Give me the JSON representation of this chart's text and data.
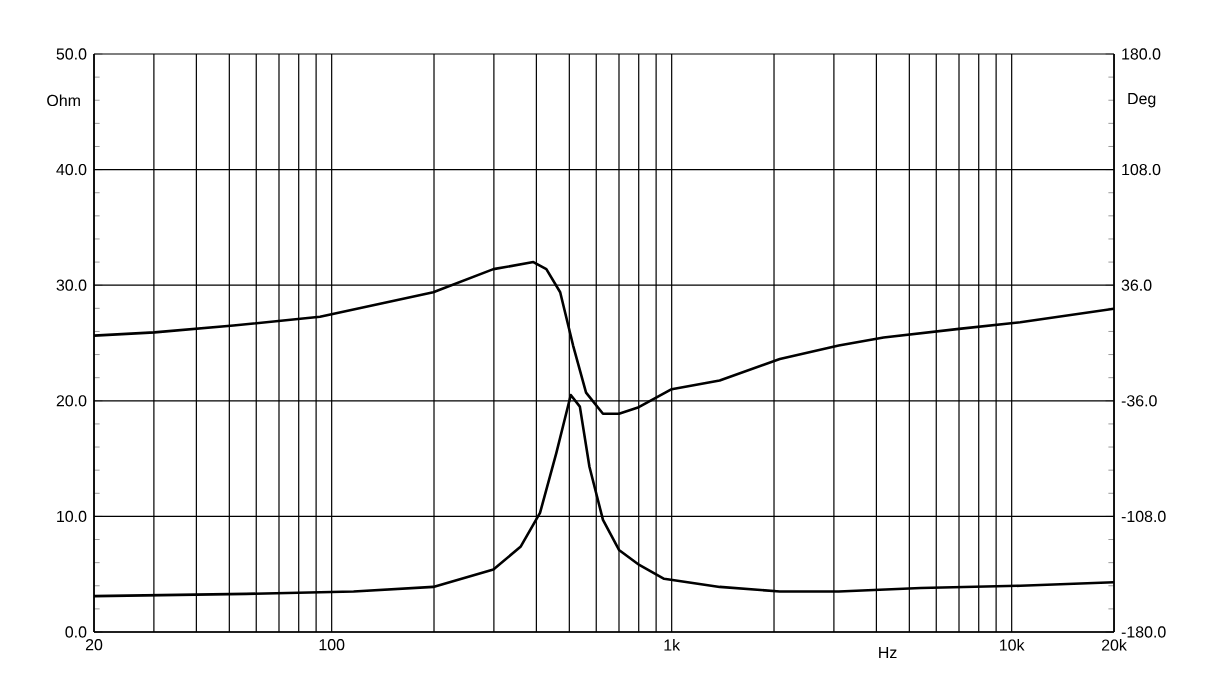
{
  "chart_data": {
    "type": "line",
    "xlabel": "Hz",
    "ylabel": "Ohm",
    "y2label": "Deg",
    "log": "x",
    "grid": true,
    "line_style": "solid",
    "x": [
      20,
      30.1,
      51.4,
      92.4,
      199,
      299,
      392,
      428,
      470,
      513,
      560,
      628,
      700,
      800,
      1000,
      1384,
      2080,
      3100,
      4200,
      7000,
      10600,
      20000
    ],
    "xlim": [
      20,
      20000
    ],
    "xticks": [
      20,
      {
        "value": 30,
        "label": null
      },
      {
        "value": 40,
        "label": null
      },
      {
        "value": 50,
        "label": null
      },
      {
        "value": 60,
        "label": null
      },
      {
        "value": 70,
        "label": null
      },
      {
        "value": 80,
        "label": null
      },
      {
        "value": 90,
        "label": null
      },
      100,
      {
        "value": 200,
        "label": null
      },
      {
        "value": 300,
        "label": null
      },
      {
        "value": 400,
        "label": null
      },
      {
        "value": 500,
        "label": null
      },
      {
        "value": 600,
        "label": null
      },
      {
        "value": 700,
        "label": null
      },
      {
        "value": 800,
        "label": null
      },
      {
        "value": 900,
        "label": null
      },
      {
        "value": 1000,
        "label": "1k"
      },
      {
        "value": 2000,
        "label": null
      },
      {
        "value": 3000,
        "label": null
      },
      {
        "value": 4000,
        "label": null
      },
      {
        "value": 5000,
        "label": null
      },
      {
        "value": 6000,
        "label": null
      },
      {
        "value": 7000,
        "label": null
      },
      {
        "value": 8000,
        "label": null
      },
      {
        "value": 9000,
        "label": null
      },
      {
        "value": 10000,
        "label": "10k"
      },
      {
        "value": 20000,
        "label": "20k"
      }
    ],
    "ylim": [
      0,
      50
    ],
    "yticks": [
      {
        "value": 0,
        "label": "0.0"
      },
      {
        "value": 10,
        "label": "10.0"
      },
      {
        "value": 20,
        "label": "20.0"
      },
      {
        "value": 30,
        "label": "30.0"
      },
      {
        "value": 40,
        "label": "40.0"
      },
      {
        "value": 50,
        "label": "50.0"
      }
    ],
    "y2lim": [
      -180,
      180
    ],
    "y2ticks": [
      {
        "value": -180,
        "label": "-180.0"
      },
      {
        "value": -108,
        "label": "-108.0"
      },
      {
        "value": -36,
        "label": "-36.0"
      },
      {
        "value": 36,
        "label": "36.0"
      },
      {
        "value": 108,
        "label": "108.0"
      },
      {
        "value": 180,
        "label": "180.0"
      }
    ],
    "series": [
      {
        "color": "#000000",
        "x": [
          20,
          56,
          116,
          199,
          299,
          360,
          410,
          458,
          505,
          537,
          573,
          628,
          700,
          803,
          950,
          1384,
          2080,
          3100,
          5400,
          10600,
          20000
        ],
        "values": [
          3.1,
          3.3,
          3.5,
          3.9,
          5.4,
          7.4,
          10.3,
          15.5,
          20.5,
          19.5,
          14.3,
          9.7,
          7.1,
          5.8,
          4.6,
          3.9,
          3.5,
          3.5,
          3.8,
          4.0,
          4.3
        ]
      },
      {
        "color": "#000000",
        "axis": "y2",
        "values": [
          4.6,
          6.6,
          10.9,
          16.3,
          31.6,
          46,
          50.4,
          46,
          31.6,
          -1.6,
          -30.9,
          -44.1,
          -44.1,
          -40,
          -28.8,
          -23.4,
          -10,
          -1.6,
          3.4,
          8.8,
          12.9,
          21.3
        ]
      }
    ]
  }
}
